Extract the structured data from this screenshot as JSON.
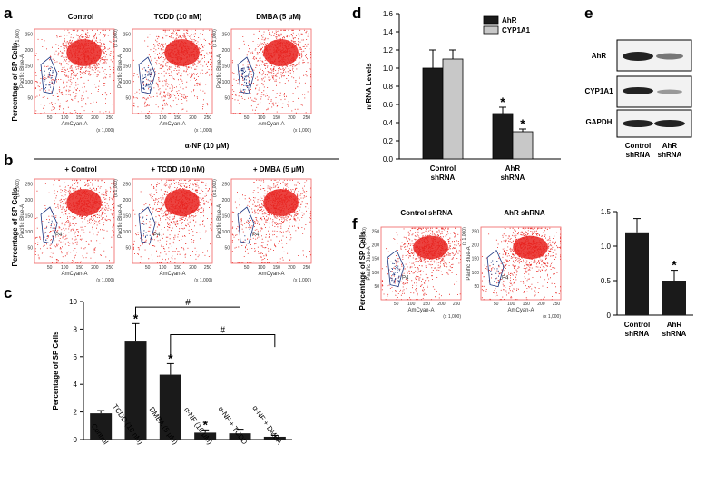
{
  "panel_letters": {
    "a": "a",
    "b": "b",
    "c": "c",
    "d": "d",
    "e": "e",
    "f": "f"
  },
  "flow_labels": {
    "y_axis": "Pacific Blue-A",
    "x_axis": "AmCyan-A",
    "scale": "(x 1,000)",
    "x_ticks": [
      "50",
      "100",
      "150",
      "200",
      "250"
    ],
    "y_ticks": [
      "50",
      "100",
      "150",
      "200",
      "250"
    ],
    "gate": "P4",
    "sp_label": "Percentage of SP Cells"
  },
  "panel_a": {
    "titles": [
      "Control",
      "TCDD (10 nM)",
      "DMBA (5 μM)"
    ]
  },
  "panel_b": {
    "header": "α-NF (10 μM)",
    "titles": [
      "+ Control",
      "+ TCDD (10 nM)",
      "+ DMBA (5 μM)"
    ]
  },
  "panel_f": {
    "titles": [
      "Control shRNA",
      "AhR shRNA"
    ]
  },
  "panel_e": {
    "rows": [
      "AhR",
      "CYP1A1",
      "GAPDH"
    ],
    "lanes": [
      "Control\nshRNA",
      "AhR\nshRNA"
    ],
    "lane_labels": [
      "Control",
      "shRNA",
      "AhR",
      "shRNA"
    ]
  },
  "colors": {
    "black_bar": "#1a1a1a",
    "grey_bar": "#c8c8c8",
    "dots": "#e8221e",
    "gate": "#1a3580"
  },
  "chart_data": [
    {
      "id": "c",
      "type": "bar",
      "title": "",
      "ylabel": "Percentage of SP Cells",
      "xlabel": "",
      "categories": [
        "Control",
        "TCDD (10 nM)",
        "DMBA (5 μM)",
        "α-NF (10 μM)",
        "α-NF + TCDD",
        "α-NF + DMBA"
      ],
      "values": [
        1.9,
        7.1,
        4.7,
        0.5,
        0.45,
        0.2
      ],
      "errors": [
        0.2,
        1.3,
        0.8,
        0.2,
        0.3,
        0.1
      ],
      "significance": [
        "",
        "*",
        "*",
        "*",
        "",
        ""
      ],
      "brackets": [
        {
          "from": 1,
          "to": 4,
          "label": "#"
        },
        {
          "from": 2,
          "to": 5,
          "label": "#"
        }
      ],
      "ylim": [
        0,
        10
      ],
      "yticks": [
        0,
        2,
        4,
        6,
        8,
        10
      ]
    },
    {
      "id": "d",
      "type": "bar",
      "title": "",
      "ylabel": "mRNA Levels",
      "xlabel": "",
      "categories": [
        "Control shRNA",
        "AhR shRNA"
      ],
      "category_lines": [
        [
          "Control",
          "shRNA"
        ],
        [
          "AhR",
          "shRNA"
        ]
      ],
      "series": [
        {
          "name": "AhR",
          "values": [
            1.0,
            0.5
          ],
          "errors": [
            0.2,
            0.07
          ],
          "significance": [
            "",
            "*"
          ]
        },
        {
          "name": "CYP1A1",
          "values": [
            1.1,
            0.3
          ],
          "errors": [
            0.1,
            0.03
          ],
          "significance": [
            "",
            "*"
          ]
        }
      ],
      "legend": "top-right",
      "ylim": [
        0,
        1.6
      ],
      "yticks": [
        0.0,
        0.2,
        0.4,
        0.6,
        0.8,
        1.0,
        1.2,
        1.4,
        1.6
      ],
      "ytick_labels": [
        "0.0",
        "0.2",
        "0.4",
        "0.6",
        "0.8",
        "1.0",
        "1.2",
        "1.4",
        "1.6"
      ]
    },
    {
      "id": "f",
      "type": "bar",
      "title": "",
      "ylabel": "",
      "xlabel": "",
      "categories": [
        "Control shRNA",
        "AhR shRNA"
      ],
      "category_lines": [
        [
          "Control",
          "shRNA"
        ],
        [
          "AhR",
          "shRNA"
        ]
      ],
      "values": [
        1.2,
        0.5
      ],
      "errors": [
        0.2,
        0.15
      ],
      "significance": [
        "",
        "*"
      ],
      "ylim": [
        0,
        1.5
      ],
      "yticks": [
        0,
        0.5,
        1.0,
        1.5
      ],
      "ytick_labels": [
        "0",
        "0.5",
        "1.0",
        "1.5"
      ]
    }
  ]
}
